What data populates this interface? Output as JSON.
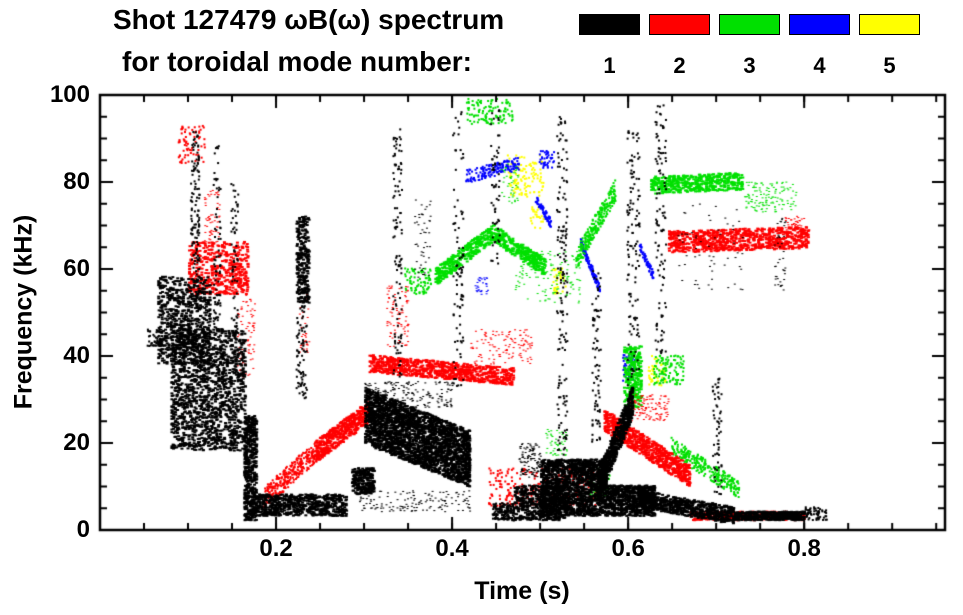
{
  "chart_data": {
    "type": "scatter",
    "title": "Shot 127479 ωB(ω) spectrum",
    "subtitle": "for toroidal mode number:",
    "xlabel": "Time (s)",
    "ylabel": "Frequency (kHz)",
    "xlim": [
      0.0,
      0.96
    ],
    "ylim": [
      0,
      100
    ],
    "xticks_major": [
      0.2,
      0.4,
      0.6,
      0.8
    ],
    "xtick_labels": [
      "0.2",
      "0.4",
      "0.6",
      "0.8"
    ],
    "xtick_minor_step": 0.05,
    "yticks_major": [
      0,
      20,
      40,
      60,
      80,
      100
    ],
    "ytick_labels": [
      "0",
      "20",
      "40",
      "60",
      "80",
      "100"
    ],
    "ytick_minor_step": 5,
    "grid": false,
    "legend_position": "top-right",
    "legend": [
      {
        "label": "1",
        "color": "#000000"
      },
      {
        "label": "2",
        "color": "#ff0000"
      },
      {
        "label": "3",
        "color": "#00e000"
      },
      {
        "label": "4",
        "color": "#0000ff"
      },
      {
        "label": "5",
        "color": "#ffff00"
      }
    ],
    "cluster_format": [
      "shape: x=box, b=band(f_start->f_end center line), s=vertical-streak",
      "t_start_s",
      "t_end_s",
      "f_start_kHz",
      "f_end_kHz",
      "band_thickness_kHz",
      "point_count",
      "dot_w_px",
      "dot_h_px"
    ],
    "series": [
      {
        "name": "toroidal mode n=1",
        "legend_label": "1",
        "color": "#000000",
        "clusters": [
          [
            "x",
            0.052,
            0.07,
            42,
            46,
            0,
            40,
            2,
            2
          ],
          [
            "x",
            0.065,
            0.125,
            38,
            58,
            0,
            700,
            3,
            2
          ],
          [
            "x",
            0.08,
            0.165,
            18,
            46,
            0,
            1500,
            3,
            2
          ],
          [
            "s",
            0.102,
            0.112,
            58,
            92,
            0,
            120,
            2,
            2
          ],
          [
            "s",
            0.128,
            0.136,
            46,
            88,
            0,
            80,
            2,
            2
          ],
          [
            "s",
            0.148,
            0.156,
            46,
            80,
            0,
            60,
            2,
            2
          ],
          [
            "x",
            0.163,
            0.178,
            2,
            26,
            0,
            500,
            3,
            2
          ],
          [
            "x",
            0.17,
            0.28,
            3,
            8,
            0,
            700,
            3,
            2
          ],
          [
            "s",
            0.222,
            0.236,
            52,
            72,
            0,
            260,
            3,
            2
          ],
          [
            "s",
            0.222,
            0.234,
            30,
            52,
            0,
            80,
            2,
            2
          ],
          [
            "x",
            0.285,
            0.31,
            8,
            14,
            0,
            250,
            3,
            2
          ],
          [
            "b",
            0.3,
            0.42,
            26,
            16,
            13,
            2600,
            3,
            2
          ],
          [
            "x",
            0.3,
            0.4,
            28,
            34,
            0,
            200,
            2,
            1
          ],
          [
            "x",
            0.29,
            0.42,
            4,
            9,
            0,
            150,
            2,
            1
          ],
          [
            "s",
            0.332,
            0.342,
            35,
            92,
            0,
            110,
            2,
            2
          ],
          [
            "s",
            0.4,
            0.412,
            32,
            96,
            0,
            90,
            2,
            2
          ],
          [
            "x",
            0.355,
            0.375,
            58,
            76,
            0,
            50,
            2,
            1
          ],
          [
            "s",
            0.443,
            0.453,
            60,
            97,
            0,
            60,
            2,
            2
          ],
          [
            "x",
            0.445,
            0.47,
            2,
            6,
            0,
            150,
            2,
            2
          ],
          [
            "x",
            0.47,
            0.53,
            2,
            10,
            0,
            500,
            3,
            2
          ],
          [
            "x",
            0.475,
            0.5,
            12,
            20,
            0,
            120,
            2,
            1
          ],
          [
            "x",
            0.5,
            0.575,
            3,
            16,
            0,
            1600,
            3,
            2
          ],
          [
            "s",
            0.518,
            0.53,
            16,
            95,
            0,
            160,
            2,
            2
          ],
          [
            "s",
            0.558,
            0.568,
            20,
            60,
            0,
            80,
            2,
            2
          ],
          [
            "b",
            0.565,
            0.605,
            10,
            30,
            7,
            700,
            3,
            2
          ],
          [
            "x",
            0.575,
            0.63,
            3,
            10,
            0,
            700,
            3,
            2
          ],
          [
            "s",
            0.598,
            0.612,
            33,
            92,
            0,
            130,
            2,
            2
          ],
          [
            "s",
            0.63,
            0.642,
            40,
            98,
            0,
            110,
            2,
            2
          ],
          [
            "b",
            0.61,
            0.72,
            7,
            3,
            4,
            700,
            3,
            2
          ],
          [
            "x",
            0.72,
            0.8,
            2,
            4,
            0,
            450,
            3,
            2
          ],
          [
            "x",
            0.655,
            0.73,
            55,
            75,
            0,
            60,
            2,
            1
          ],
          [
            "s",
            0.695,
            0.705,
            8,
            35,
            0,
            60,
            2,
            2
          ],
          [
            "x",
            0.765,
            0.778,
            55,
            72,
            0,
            40,
            2,
            1
          ],
          [
            "x",
            0.8,
            0.825,
            2,
            5,
            0,
            60,
            2,
            2
          ]
        ]
      },
      {
        "name": "toroidal mode n=2",
        "legend_label": "2",
        "color": "#ff0000",
        "clusters": [
          [
            "x",
            0.088,
            0.118,
            84,
            93,
            0,
            70,
            2,
            2
          ],
          [
            "x",
            0.1,
            0.168,
            54,
            66,
            0,
            450,
            3,
            2
          ],
          [
            "x",
            0.118,
            0.135,
            66,
            78,
            0,
            60,
            2,
            1
          ],
          [
            "x",
            0.155,
            0.175,
            35,
            55,
            0,
            80,
            2,
            1
          ],
          [
            "b",
            0.185,
            0.245,
            7,
            18,
            5,
            300,
            2,
            2
          ],
          [
            "b",
            0.245,
            0.305,
            18,
            27,
            5,
            450,
            3,
            2
          ],
          [
            "b",
            0.305,
            0.47,
            38,
            35,
            4,
            800,
            3,
            2
          ],
          [
            "x",
            0.325,
            0.35,
            42,
            56,
            0,
            90,
            2,
            1
          ],
          [
            "x",
            0.225,
            0.237,
            40,
            55,
            0,
            40,
            2,
            1
          ],
          [
            "x",
            0.42,
            0.49,
            38,
            46,
            0,
            120,
            2,
            1
          ],
          [
            "x",
            0.44,
            0.565,
            5,
            14,
            0,
            260,
            2,
            2
          ],
          [
            "b",
            0.572,
            0.67,
            25,
            12,
            5,
            700,
            3,
            2
          ],
          [
            "x",
            0.6,
            0.645,
            25,
            31,
            0,
            120,
            2,
            1
          ],
          [
            "b",
            0.645,
            0.805,
            66,
            67,
            5,
            800,
            3,
            2
          ],
          [
            "x",
            0.67,
            0.8,
            2,
            4,
            0,
            350,
            3,
            2
          ],
          [
            "x",
            0.775,
            0.8,
            68,
            72,
            0,
            60,
            2,
            1
          ]
        ]
      },
      {
        "name": "toroidal mode n=3",
        "legend_label": "3",
        "color": "#00e000",
        "clusters": [
          [
            "x",
            0.345,
            0.375,
            54,
            60,
            0,
            80,
            2,
            2
          ],
          [
            "b",
            0.38,
            0.445,
            58,
            68,
            4,
            350,
            3,
            2
          ],
          [
            "b",
            0.445,
            0.505,
            68,
            60,
            4,
            300,
            3,
            2
          ],
          [
            "x",
            0.415,
            0.47,
            93,
            99,
            0,
            110,
            2,
            2
          ],
          [
            "x",
            0.47,
            0.545,
            52,
            64,
            0,
            130,
            2,
            1
          ],
          [
            "b",
            0.54,
            0.585,
            62,
            78,
            5,
            260,
            2,
            2
          ],
          [
            "s",
            0.594,
            0.614,
            28,
            42,
            0,
            260,
            3,
            2
          ],
          [
            "x",
            0.628,
            0.662,
            33,
            40,
            0,
            110,
            2,
            2
          ],
          [
            "b",
            0.625,
            0.73,
            79,
            80,
            4,
            450,
            3,
            2
          ],
          [
            "b",
            0.648,
            0.725,
            19,
            9,
            4,
            280,
            2,
            2
          ],
          [
            "x",
            0.73,
            0.79,
            73,
            80,
            0,
            130,
            2,
            1
          ],
          [
            "x",
            0.555,
            0.578,
            7,
            14,
            0,
            70,
            2,
            2
          ],
          [
            "x",
            0.505,
            0.53,
            17,
            23,
            0,
            50,
            2,
            1
          ],
          [
            "x",
            0.455,
            0.475,
            75,
            85,
            0,
            40,
            2,
            1
          ]
        ]
      },
      {
        "name": "toroidal mode n=4",
        "legend_label": "4",
        "color": "#0000ff",
        "clusters": [
          [
            "b",
            0.415,
            0.475,
            81,
            84,
            3,
            160,
            2,
            2
          ],
          [
            "b",
            0.493,
            0.512,
            76,
            70,
            2,
            70,
            2,
            2
          ],
          [
            "b",
            0.545,
            0.567,
            66,
            55,
            2,
            130,
            2,
            2
          ],
          [
            "x",
            0.593,
            0.607,
            34,
            40,
            0,
            50,
            2,
            2
          ],
          [
            "b",
            0.612,
            0.628,
            65,
            58,
            2,
            60,
            2,
            2
          ],
          [
            "x",
            0.498,
            0.515,
            83,
            87,
            0,
            40,
            2,
            2
          ],
          [
            "x",
            0.425,
            0.44,
            54,
            58,
            0,
            30,
            2,
            1
          ]
        ]
      },
      {
        "name": "toroidal mode n=5",
        "legend_label": "5",
        "color": "#ffff00",
        "clusters": [
          [
            "x",
            0.462,
            0.503,
            76,
            86,
            0,
            110,
            2,
            2
          ],
          [
            "x",
            0.513,
            0.528,
            54,
            60,
            0,
            35,
            2,
            2
          ],
          [
            "x",
            0.622,
            0.642,
            33,
            40,
            0,
            45,
            2,
            2
          ],
          [
            "x",
            0.488,
            0.503,
            69,
            74,
            0,
            25,
            2,
            2
          ]
        ]
      }
    ]
  }
}
